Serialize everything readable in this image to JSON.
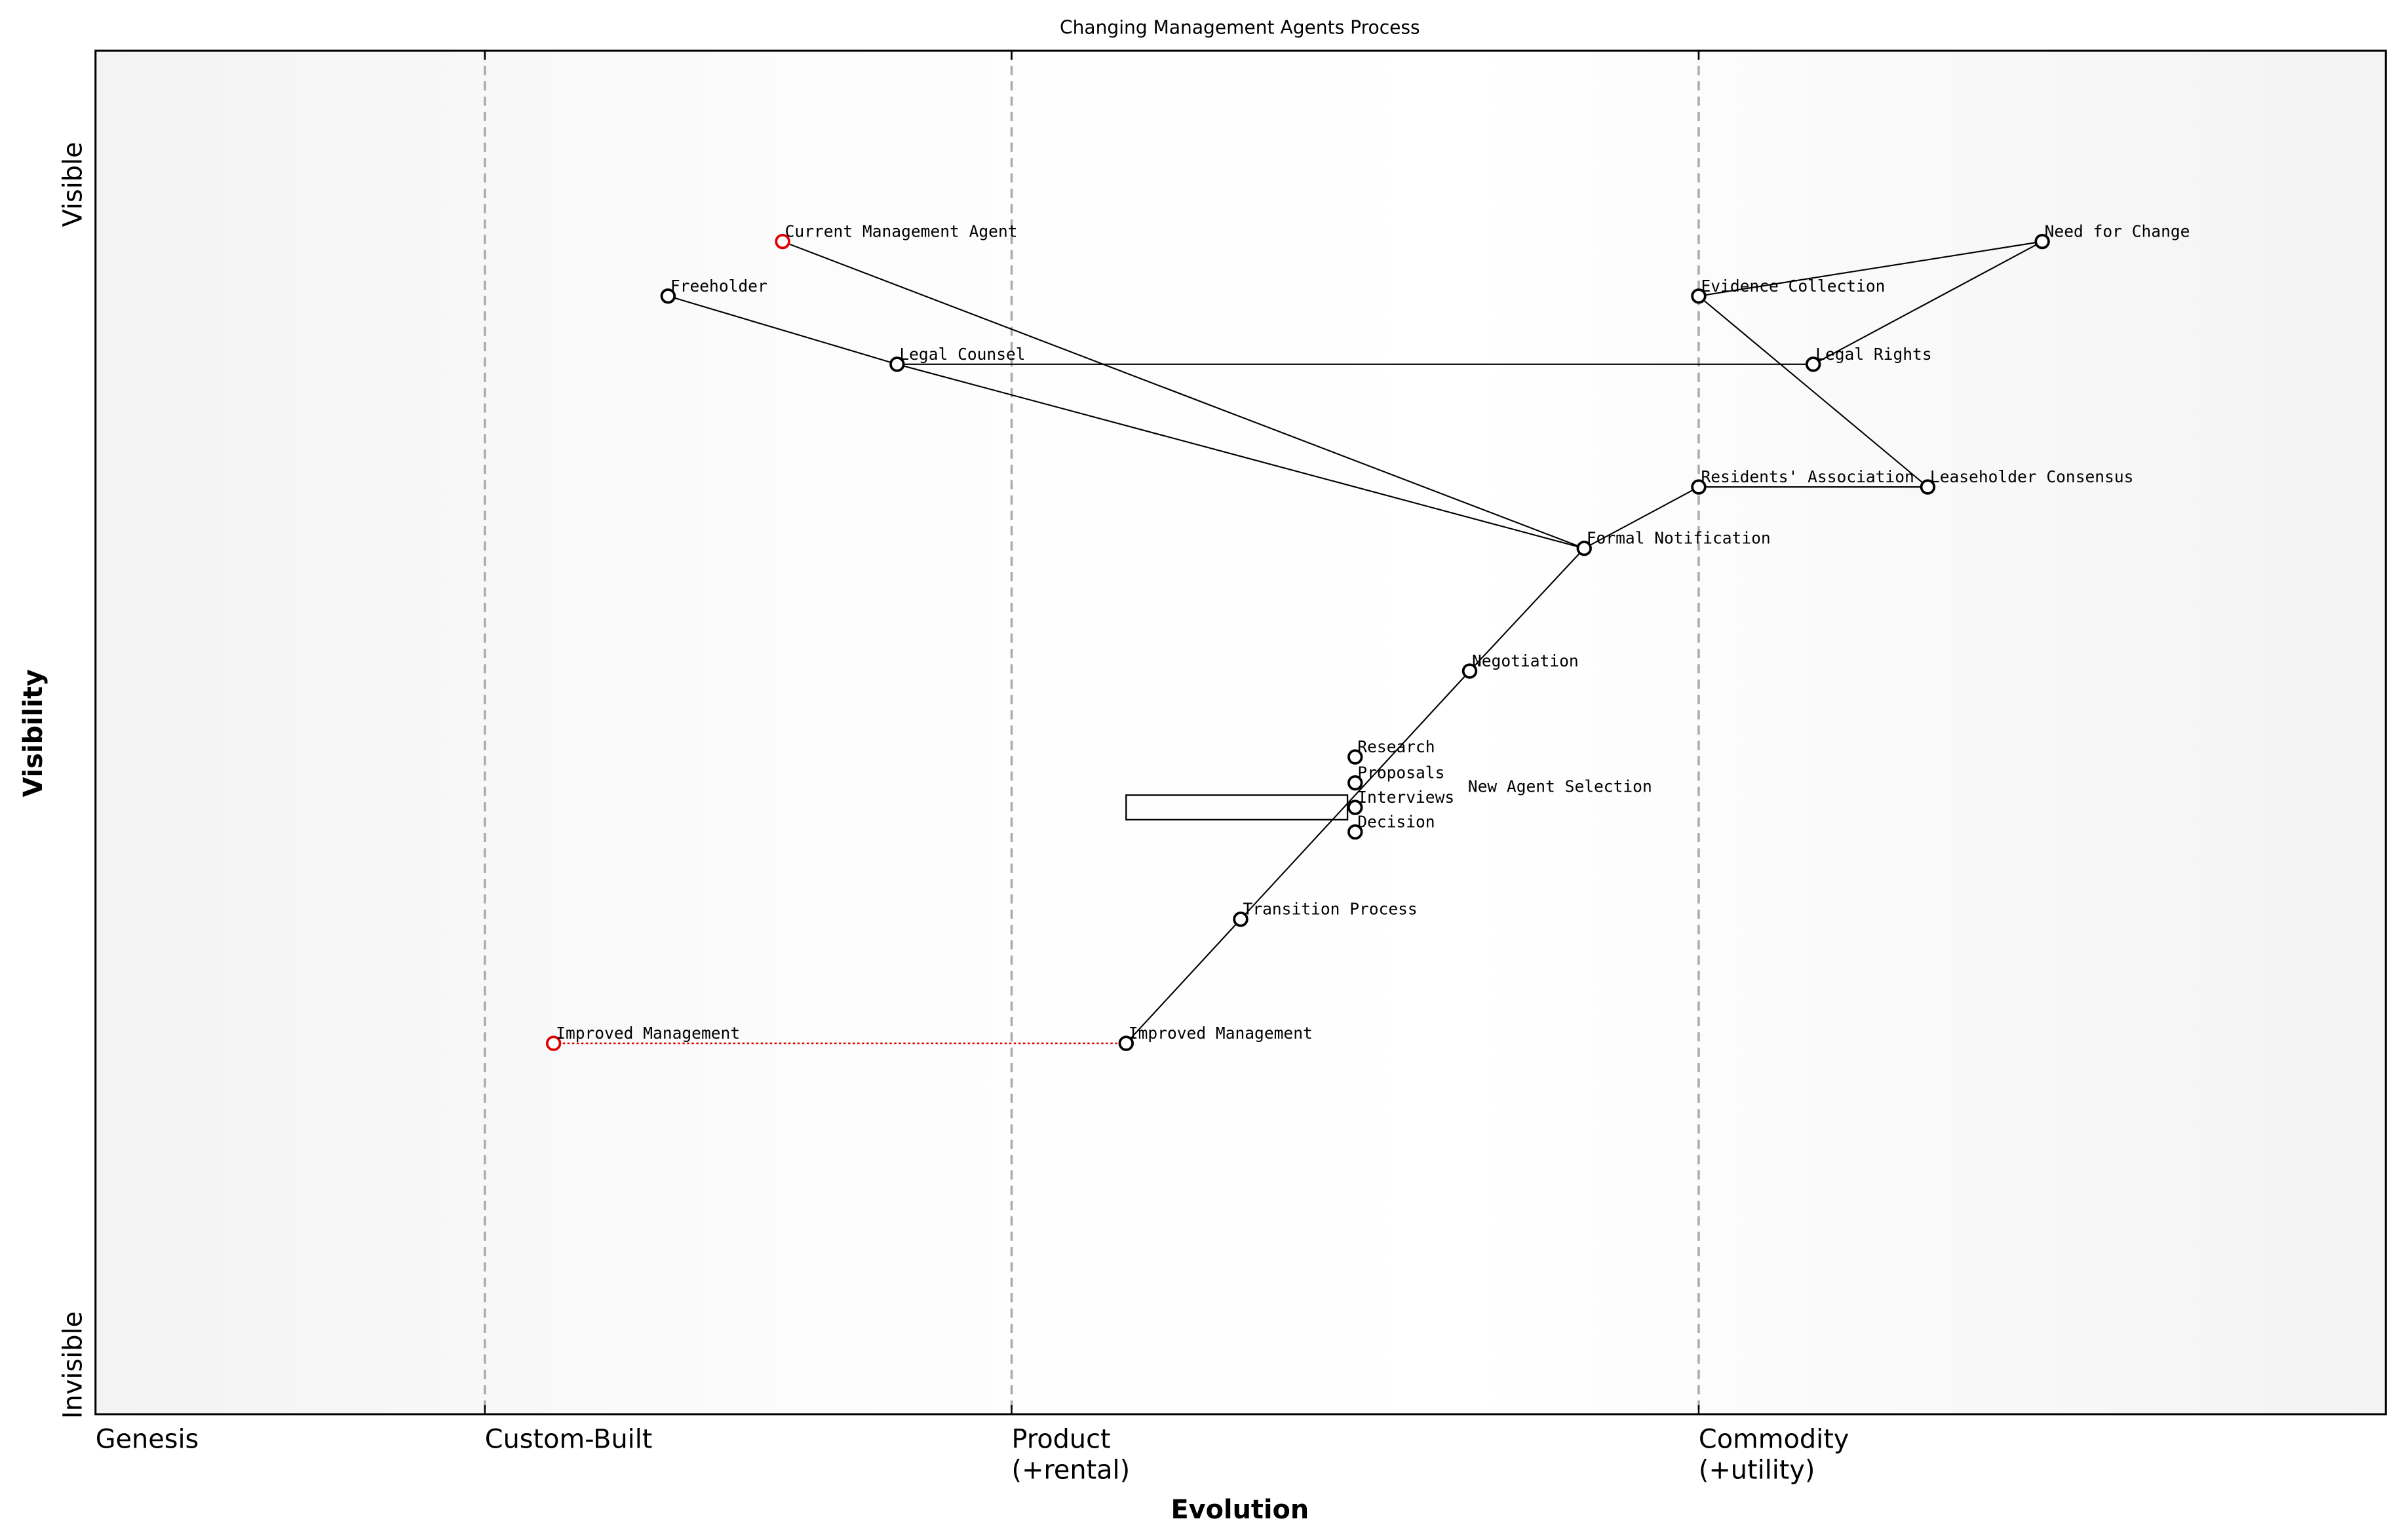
{
  "title": "Changing Management Agents Process",
  "x_axis": {
    "label": "Evolution",
    "stages": [
      {
        "label": [
          "Genesis"
        ],
        "at": 0
      },
      {
        "label": [
          "Custom-Built"
        ],
        "at": 0.17
      },
      {
        "label": [
          "Product",
          "(+rental)"
        ],
        "at": 0.4
      },
      {
        "label": [
          "Commodity",
          "(+utility)"
        ],
        "at": 0.7
      }
    ]
  },
  "y_axis": {
    "label": "Visibility",
    "top": "Visible",
    "bottom": "Invisible"
  },
  "colors": {
    "node": "#000000",
    "inertia_node": "#e00000",
    "evolve_line": "#e00000",
    "stage_line": "#aaaaaa"
  },
  "components": [
    {
      "name": "Current Management Agent",
      "evolution": 0.3,
      "visibility": 0.86,
      "color": "red"
    },
    {
      "name": "Freeholder",
      "evolution": 0.25,
      "visibility": 0.82
    },
    {
      "name": "Legal Counsel",
      "evolution": 0.35,
      "visibility": 0.77
    },
    {
      "name": "Need for Change",
      "evolution": 0.85,
      "visibility": 0.86
    },
    {
      "name": "Evidence Collection",
      "evolution": 0.7,
      "visibility": 0.82
    },
    {
      "name": "Legal Rights",
      "evolution": 0.75,
      "visibility": 0.77
    },
    {
      "name": "Residents' Association",
      "evolution": 0.7,
      "visibility": 0.68
    },
    {
      "name": "Leaseholder Consensus",
      "evolution": 0.8,
      "visibility": 0.68
    },
    {
      "name": "Formal Notification",
      "evolution": 0.65,
      "visibility": 0.635
    },
    {
      "name": "Negotiation",
      "evolution": 0.6,
      "visibility": 0.545
    },
    {
      "name": "Research",
      "evolution": 0.55,
      "visibility": 0.482
    },
    {
      "name": "Proposals",
      "evolution": 0.55,
      "visibility": 0.463
    },
    {
      "name": "New Agent Selection",
      "evolution": 0.55,
      "visibility": 0.454,
      "hidden_marker": true
    },
    {
      "name": "Interviews",
      "evolution": 0.55,
      "visibility": 0.445
    },
    {
      "name": "Decision",
      "evolution": 0.55,
      "visibility": 0.427
    },
    {
      "name": "Transition Process",
      "evolution": 0.5,
      "visibility": 0.363
    },
    {
      "name": "Improved Management",
      "evolution": 0.45,
      "visibility": 0.272
    },
    {
      "name": "Improved Management",
      "evolution": 0.2,
      "visibility": 0.272,
      "color": "red"
    }
  ],
  "pipeline": {
    "component": "New Agent Selection",
    "evolution_start": 0.45,
    "evolution_end": 0.55,
    "visibility_top": 0.454,
    "visibility_bottom": 0.436
  },
  "links": [
    [
      "Freeholder",
      "Legal Counsel"
    ],
    [
      "Legal Counsel",
      "Formal Notification"
    ],
    [
      "Current Management Agent",
      "Formal Notification"
    ],
    [
      "Legal Counsel",
      "Legal Rights"
    ],
    [
      "Need for Change",
      "Evidence Collection"
    ],
    [
      "Need for Change",
      "Legal Rights"
    ],
    [
      "Evidence Collection",
      "Leaseholder Consensus"
    ],
    [
      "Residents' Association",
      "Leaseholder Consensus"
    ],
    [
      "Formal Notification",
      "Residents' Association"
    ],
    [
      "Formal Notification",
      "Negotiation"
    ],
    [
      "Negotiation",
      "New Agent Selection"
    ],
    [
      "New Agent Selection",
      "Transition Process"
    ],
    [
      "Transition Process",
      "Improved Management"
    ]
  ],
  "evolve": {
    "from_evolution": 0.2,
    "to_evolution": 0.45,
    "visibility": 0.272
  }
}
